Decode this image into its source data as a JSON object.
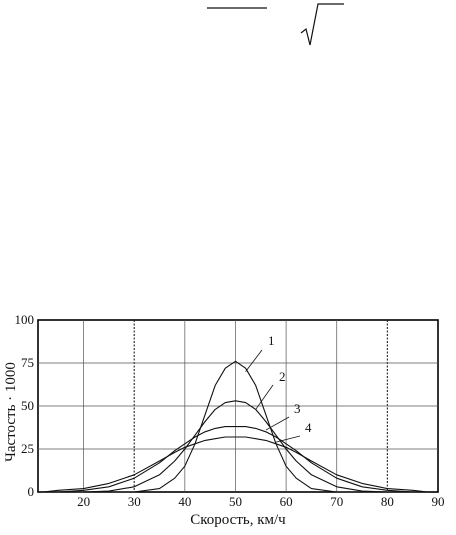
{
  "chart_data": {
    "type": "line",
    "xlabel": "Скорость, км/ч",
    "ylabel": "Частость · 1000",
    "xlim": [
      11,
      90
    ],
    "ylim": [
      0,
      100
    ],
    "x_ticks": [
      20,
      30,
      40,
      50,
      60,
      70,
      80,
      90
    ],
    "y_ticks": [
      0,
      25,
      50,
      75,
      100
    ],
    "grid": true,
    "x": [
      12,
      15,
      20,
      25,
      30,
      35,
      38,
      40,
      42,
      44,
      46,
      48,
      50,
      52,
      54,
      56,
      58,
      60,
      62,
      65,
      70,
      75,
      80,
      85,
      88
    ],
    "series": [
      {
        "label": "1",
        "values": [
          0,
          0,
          0,
          0,
          0,
          2,
          8,
          15,
          28,
          45,
          62,
          72,
          76,
          72,
          62,
          45,
          28,
          15,
          8,
          2,
          0,
          0,
          0,
          0,
          0
        ]
      },
      {
        "label": "2",
        "values": [
          0,
          0,
          0,
          0.5,
          3,
          10,
          18,
          25,
          33,
          41,
          48,
          52,
          53,
          52,
          48,
          41,
          33,
          25,
          18,
          10,
          3,
          0.5,
          0,
          0,
          0
        ]
      },
      {
        "label": "3",
        "values": [
          0,
          0,
          1,
          3,
          8,
          17,
          24,
          28,
          32,
          35,
          37,
          38,
          38,
          38,
          37,
          35,
          32,
          28,
          24,
          17,
          8,
          3,
          1,
          0,
          0
        ]
      },
      {
        "label": "4",
        "values": [
          0,
          1,
          2,
          5,
          10,
          18,
          23,
          26,
          28,
          30,
          31,
          32,
          32,
          32,
          31,
          30,
          28,
          26,
          23,
          18,
          10,
          5,
          2,
          1,
          0
        ]
      }
    ]
  }
}
